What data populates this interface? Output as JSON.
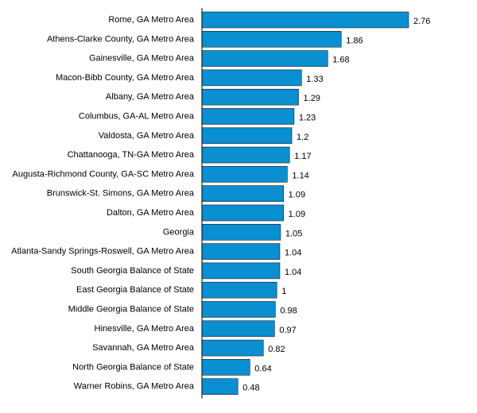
{
  "chart_data": {
    "type": "bar",
    "orientation": "horizontal",
    "categories": [
      "Rome, GA Metro Area",
      "Athens-Clarke County, GA Metro Area",
      "Gainesville, GA Metro Area",
      "Macon-Bibb County, GA Metro Area",
      "Albany, GA Metro Area",
      "Columbus, GA-AL Metro Area",
      "Valdosta, GA Metro Area",
      "Chattanooga, TN-GA Metro Area",
      "Augusta-Richmond County, GA-SC Metro Area",
      "Brunswick-St. Simons, GA Metro Area",
      "Dalton, GA Metro Area",
      "Georgia",
      "Atlanta-Sandy Springs-Roswell, GA Metro Area",
      "South Georgia Balance of State",
      "East Georgia Balance of State",
      "Middle Georgia Balance of State",
      "Hinesville, GA Metro Area",
      "Savannah, GA Metro Area",
      "North Georgia Balance of State",
      "Warner Robins, GA Metro Area"
    ],
    "values": [
      2.76,
      1.86,
      1.68,
      1.33,
      1.29,
      1.23,
      1.2,
      1.17,
      1.14,
      1.09,
      1.09,
      1.05,
      1.04,
      1.04,
      1,
      0.98,
      0.97,
      0.82,
      0.64,
      0.48
    ],
    "value_labels": [
      "2.76",
      "1.86",
      "1.68",
      "1.33",
      "1.29",
      "1.23",
      "1.2",
      "1.17",
      "1.14",
      "1.09",
      "1.09",
      "1.05",
      "1.04",
      "1.04",
      "1",
      "0.98",
      "0.97",
      "0.82",
      "0.64",
      "0.48"
    ],
    "xlim": [
      0,
      2.76
    ],
    "bar_color": "#0a8fd1",
    "bar_outline_color": "#1a1a1a",
    "grid": false,
    "legend": "none"
  }
}
